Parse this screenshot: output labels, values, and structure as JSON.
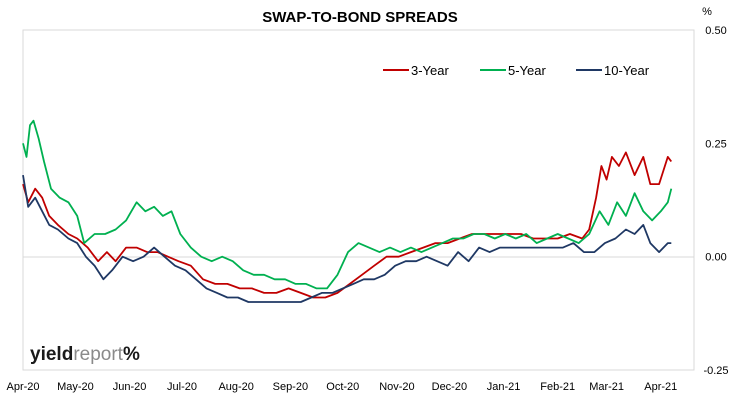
{
  "chart_data": {
    "type": "line",
    "title": "SWAP-TO-BOND SPREADS",
    "ylabel": "%",
    "ylim": [
      -0.25,
      0.5
    ],
    "yticks": [
      "0.50",
      "0.25",
      "0.00",
      "-0.25"
    ],
    "xlim": [
      "2020-04-01",
      "2021-04-20"
    ],
    "xticks": [
      {
        "date": "2020-04-01",
        "label": "Apr-20"
      },
      {
        "date": "2020-05-01",
        "label": "May-20"
      },
      {
        "date": "2020-06-01",
        "label": "Jun-20"
      },
      {
        "date": "2020-07-01",
        "label": "Jul-20"
      },
      {
        "date": "2020-08-01",
        "label": "Aug-20"
      },
      {
        "date": "2020-09-01",
        "label": "Sep-20"
      },
      {
        "date": "2020-10-01",
        "label": "Oct-20"
      },
      {
        "date": "2020-11-01",
        "label": "Nov-20"
      },
      {
        "date": "2020-12-01",
        "label": "Dec-20"
      },
      {
        "date": "2021-01-01",
        "label": "Jan-21"
      },
      {
        "date": "2021-02-01",
        "label": "Feb-21"
      },
      {
        "date": "2021-03-01",
        "label": "Mar-21"
      },
      {
        "date": "2021-04-01",
        "label": "Apr-21"
      }
    ],
    "grid": false,
    "legend_position": "top-right",
    "series": [
      {
        "name": "3-Year",
        "color": "#c00000",
        "points": [
          [
            "2020-04-01",
            0.16
          ],
          [
            "2020-04-04",
            0.12
          ],
          [
            "2020-04-08",
            0.15
          ],
          [
            "2020-04-12",
            0.13
          ],
          [
            "2020-04-16",
            0.09
          ],
          [
            "2020-04-21",
            0.07
          ],
          [
            "2020-04-27",
            0.05
          ],
          [
            "2020-05-02",
            0.04
          ],
          [
            "2020-05-08",
            0.02
          ],
          [
            "2020-05-14",
            -0.01
          ],
          [
            "2020-05-19",
            0.01
          ],
          [
            "2020-05-24",
            -0.01
          ],
          [
            "2020-05-30",
            0.02
          ],
          [
            "2020-06-05",
            0.02
          ],
          [
            "2020-06-11",
            0.01
          ],
          [
            "2020-06-17",
            0.01
          ],
          [
            "2020-06-23",
            0.0
          ],
          [
            "2020-06-29",
            -0.01
          ],
          [
            "2020-07-06",
            -0.02
          ],
          [
            "2020-07-13",
            -0.05
          ],
          [
            "2020-07-20",
            -0.06
          ],
          [
            "2020-07-27",
            -0.06
          ],
          [
            "2020-08-03",
            -0.07
          ],
          [
            "2020-08-10",
            -0.07
          ],
          [
            "2020-08-17",
            -0.08
          ],
          [
            "2020-08-24",
            -0.08
          ],
          [
            "2020-08-31",
            -0.07
          ],
          [
            "2020-09-07",
            -0.08
          ],
          [
            "2020-09-14",
            -0.09
          ],
          [
            "2020-09-21",
            -0.09
          ],
          [
            "2020-09-28",
            -0.08
          ],
          [
            "2020-10-05",
            -0.06
          ],
          [
            "2020-10-12",
            -0.04
          ],
          [
            "2020-10-19",
            -0.02
          ],
          [
            "2020-10-26",
            0.0
          ],
          [
            "2020-11-02",
            0.0
          ],
          [
            "2020-11-09",
            0.01
          ],
          [
            "2020-11-16",
            0.02
          ],
          [
            "2020-11-23",
            0.03
          ],
          [
            "2020-11-30",
            0.03
          ],
          [
            "2020-12-07",
            0.04
          ],
          [
            "2020-12-14",
            0.05
          ],
          [
            "2020-12-21",
            0.05
          ],
          [
            "2020-12-28",
            0.05
          ],
          [
            "2021-01-04",
            0.05
          ],
          [
            "2021-01-11",
            0.05
          ],
          [
            "2021-01-18",
            0.04
          ],
          [
            "2021-01-25",
            0.04
          ],
          [
            "2021-02-01",
            0.04
          ],
          [
            "2021-02-08",
            0.05
          ],
          [
            "2021-02-15",
            0.04
          ],
          [
            "2021-02-19",
            0.06
          ],
          [
            "2021-02-23",
            0.13
          ],
          [
            "2021-02-26",
            0.2
          ],
          [
            "2021-03-01",
            0.17
          ],
          [
            "2021-03-04",
            0.22
          ],
          [
            "2021-03-08",
            0.2
          ],
          [
            "2021-03-12",
            0.23
          ],
          [
            "2021-03-17",
            0.18
          ],
          [
            "2021-03-22",
            0.22
          ],
          [
            "2021-03-26",
            0.16
          ],
          [
            "2021-03-31",
            0.16
          ],
          [
            "2021-04-05",
            0.22
          ],
          [
            "2021-04-07",
            0.21
          ]
        ]
      },
      {
        "name": "5-Year",
        "color": "#00b050",
        "points": [
          [
            "2020-04-01",
            0.25
          ],
          [
            "2020-04-03",
            0.22
          ],
          [
            "2020-04-05",
            0.29
          ],
          [
            "2020-04-07",
            0.3
          ],
          [
            "2020-04-10",
            0.26
          ],
          [
            "2020-04-13",
            0.21
          ],
          [
            "2020-04-17",
            0.15
          ],
          [
            "2020-04-22",
            0.13
          ],
          [
            "2020-04-27",
            0.12
          ],
          [
            "2020-05-02",
            0.09
          ],
          [
            "2020-05-06",
            0.03
          ],
          [
            "2020-05-12",
            0.05
          ],
          [
            "2020-05-18",
            0.05
          ],
          [
            "2020-05-24",
            0.06
          ],
          [
            "2020-05-30",
            0.08
          ],
          [
            "2020-06-05",
            0.12
          ],
          [
            "2020-06-10",
            0.1
          ],
          [
            "2020-06-15",
            0.11
          ],
          [
            "2020-06-20",
            0.09
          ],
          [
            "2020-06-25",
            0.1
          ],
          [
            "2020-06-30",
            0.05
          ],
          [
            "2020-07-06",
            0.02
          ],
          [
            "2020-07-12",
            0.0
          ],
          [
            "2020-07-18",
            -0.01
          ],
          [
            "2020-07-24",
            0.0
          ],
          [
            "2020-07-30",
            -0.01
          ],
          [
            "2020-08-05",
            -0.03
          ],
          [
            "2020-08-11",
            -0.04
          ],
          [
            "2020-08-17",
            -0.04
          ],
          [
            "2020-08-23",
            -0.05
          ],
          [
            "2020-08-29",
            -0.05
          ],
          [
            "2020-09-04",
            -0.06
          ],
          [
            "2020-09-10",
            -0.06
          ],
          [
            "2020-09-16",
            -0.07
          ],
          [
            "2020-09-22",
            -0.07
          ],
          [
            "2020-09-28",
            -0.04
          ],
          [
            "2020-10-04",
            0.01
          ],
          [
            "2020-10-10",
            0.03
          ],
          [
            "2020-10-16",
            0.02
          ],
          [
            "2020-10-22",
            0.01
          ],
          [
            "2020-10-28",
            0.02
          ],
          [
            "2020-11-03",
            0.01
          ],
          [
            "2020-11-09",
            0.02
          ],
          [
            "2020-11-15",
            0.01
          ],
          [
            "2020-11-21",
            0.02
          ],
          [
            "2020-11-27",
            0.03
          ],
          [
            "2020-12-03",
            0.04
          ],
          [
            "2020-12-09",
            0.04
          ],
          [
            "2020-12-15",
            0.05
          ],
          [
            "2020-12-21",
            0.05
          ],
          [
            "2020-12-27",
            0.04
          ],
          [
            "2021-01-02",
            0.05
          ],
          [
            "2021-01-08",
            0.04
          ],
          [
            "2021-01-14",
            0.05
          ],
          [
            "2021-01-20",
            0.03
          ],
          [
            "2021-01-26",
            0.04
          ],
          [
            "2021-02-01",
            0.05
          ],
          [
            "2021-02-07",
            0.04
          ],
          [
            "2021-02-13",
            0.03
          ],
          [
            "2021-02-19",
            0.05
          ],
          [
            "2021-02-25",
            0.1
          ],
          [
            "2021-03-02",
            0.07
          ],
          [
            "2021-03-07",
            0.12
          ],
          [
            "2021-03-12",
            0.09
          ],
          [
            "2021-03-17",
            0.14
          ],
          [
            "2021-03-22",
            0.1
          ],
          [
            "2021-03-27",
            0.08
          ],
          [
            "2021-04-01",
            0.1
          ],
          [
            "2021-04-05",
            0.12
          ],
          [
            "2021-04-07",
            0.15
          ]
        ]
      },
      {
        "name": "10-Year",
        "color": "#1f3864",
        "points": [
          [
            "2020-04-01",
            0.18
          ],
          [
            "2020-04-04",
            0.11
          ],
          [
            "2020-04-08",
            0.13
          ],
          [
            "2020-04-12",
            0.1
          ],
          [
            "2020-04-16",
            0.07
          ],
          [
            "2020-04-21",
            0.06
          ],
          [
            "2020-04-27",
            0.04
          ],
          [
            "2020-05-02",
            0.03
          ],
          [
            "2020-05-07",
            0.0
          ],
          [
            "2020-05-12",
            -0.02
          ],
          [
            "2020-05-17",
            -0.05
          ],
          [
            "2020-05-22",
            -0.03
          ],
          [
            "2020-05-28",
            0.0
          ],
          [
            "2020-06-03",
            -0.01
          ],
          [
            "2020-06-09",
            0.0
          ],
          [
            "2020-06-15",
            0.02
          ],
          [
            "2020-06-21",
            0.0
          ],
          [
            "2020-06-27",
            -0.02
          ],
          [
            "2020-07-03",
            -0.03
          ],
          [
            "2020-07-09",
            -0.05
          ],
          [
            "2020-07-15",
            -0.07
          ],
          [
            "2020-07-21",
            -0.08
          ],
          [
            "2020-07-27",
            -0.09
          ],
          [
            "2020-08-02",
            -0.09
          ],
          [
            "2020-08-08",
            -0.1
          ],
          [
            "2020-08-14",
            -0.1
          ],
          [
            "2020-08-20",
            -0.1
          ],
          [
            "2020-08-26",
            -0.1
          ],
          [
            "2020-09-01",
            -0.1
          ],
          [
            "2020-09-07",
            -0.1
          ],
          [
            "2020-09-13",
            -0.09
          ],
          [
            "2020-09-19",
            -0.08
          ],
          [
            "2020-09-25",
            -0.08
          ],
          [
            "2020-10-01",
            -0.07
          ],
          [
            "2020-10-07",
            -0.06
          ],
          [
            "2020-10-13",
            -0.05
          ],
          [
            "2020-10-19",
            -0.05
          ],
          [
            "2020-10-25",
            -0.04
          ],
          [
            "2020-10-31",
            -0.02
          ],
          [
            "2020-11-06",
            -0.01
          ],
          [
            "2020-11-12",
            -0.01
          ],
          [
            "2020-11-18",
            0.0
          ],
          [
            "2020-11-24",
            -0.01
          ],
          [
            "2020-11-30",
            -0.02
          ],
          [
            "2020-12-06",
            0.01
          ],
          [
            "2020-12-12",
            -0.01
          ],
          [
            "2020-12-18",
            0.02
          ],
          [
            "2020-12-24",
            0.01
          ],
          [
            "2020-12-30",
            0.02
          ],
          [
            "2021-01-05",
            0.02
          ],
          [
            "2021-01-11",
            0.02
          ],
          [
            "2021-01-17",
            0.02
          ],
          [
            "2021-01-23",
            0.02
          ],
          [
            "2021-01-29",
            0.02
          ],
          [
            "2021-02-04",
            0.02
          ],
          [
            "2021-02-10",
            0.03
          ],
          [
            "2021-02-16",
            0.01
          ],
          [
            "2021-02-22",
            0.01
          ],
          [
            "2021-02-28",
            0.03
          ],
          [
            "2021-03-06",
            0.04
          ],
          [
            "2021-03-12",
            0.06
          ],
          [
            "2021-03-17",
            0.05
          ],
          [
            "2021-03-22",
            0.07
          ],
          [
            "2021-03-26",
            0.03
          ],
          [
            "2021-03-31",
            0.01
          ],
          [
            "2021-04-05",
            0.03
          ],
          [
            "2021-04-07",
            0.03
          ]
        ]
      }
    ]
  },
  "brand": {
    "part1": "yield",
    "part2": "report",
    "symbol": "%",
    "color_main": "#1a1a1a",
    "color_light": "#8a8a8a",
    "color_symbol": "#c00000"
  }
}
